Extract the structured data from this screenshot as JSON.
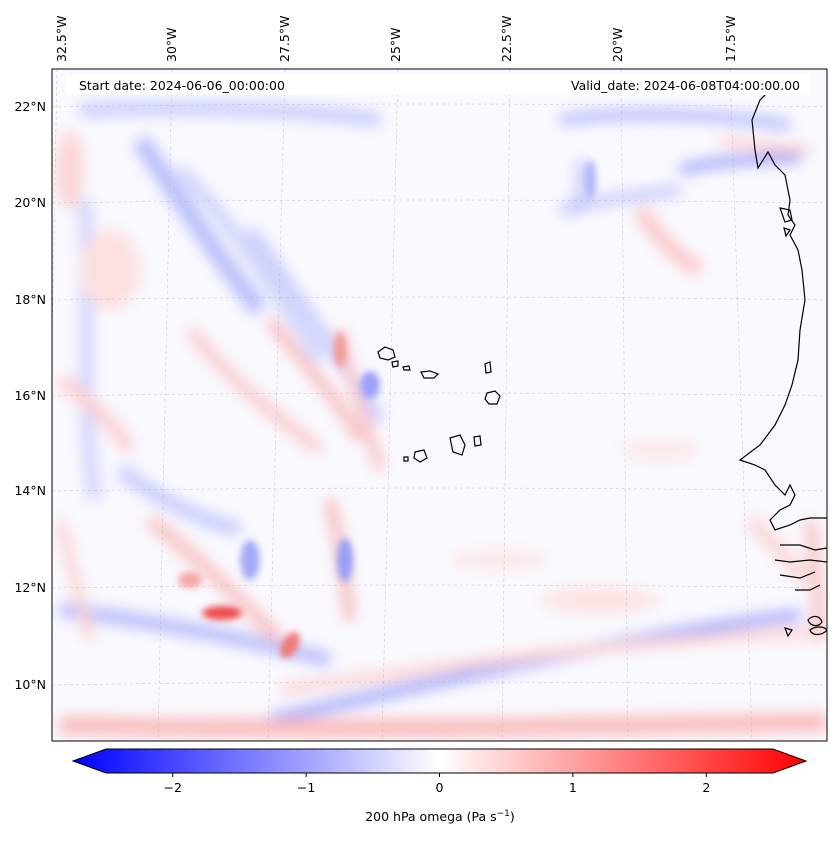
{
  "header": {
    "start_date": "Start date: 2024-06-06_00:00:00",
    "valid_date": "Valid_date: 2024-06-08T04:00:00.00"
  },
  "longitude_labels": [
    "32.5°W",
    "30°W",
    "27.5°W",
    "25°W",
    "22.5°W",
    "20°W",
    "17.5°W"
  ],
  "latitude_labels": [
    "22°N",
    "20°N",
    "18°N",
    "16°N",
    "14°N",
    "12°N",
    "10°N"
  ],
  "colorbar": {
    "ticks": [
      "−2",
      "−1",
      "0",
      "1",
      "2"
    ],
    "tick_values": [
      -2,
      -1,
      0,
      1,
      2
    ],
    "range": [
      -2.5,
      2.5
    ],
    "label": "200 hPa omega (Pa s",
    "label_sup": "−1",
    "label_close": ")",
    "colors": {
      "min": "#0000ff",
      "mid": "#ffffff",
      "max": "#ff0000"
    }
  },
  "map": {
    "variable": "200 hPa omega",
    "colormap": "bwr",
    "coastline_color": "#000000",
    "gridline_color": "#b0b0b0"
  }
}
